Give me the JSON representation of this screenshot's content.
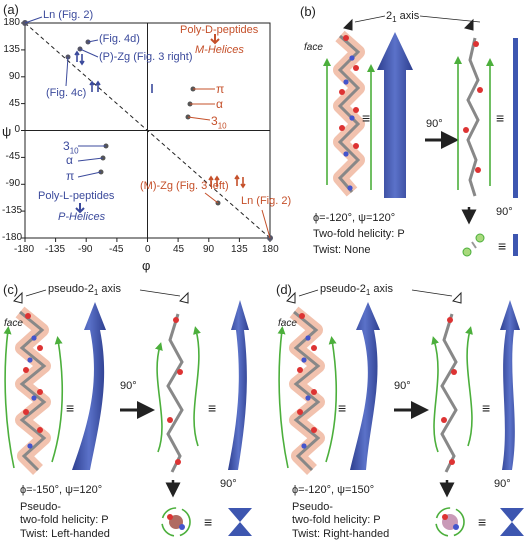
{
  "panels": {
    "a": {
      "label": "(a)",
      "x_axis_label": "φ",
      "y_axis_label": "ψ",
      "x_ticks": [
        "-180",
        "-135",
        "-90",
        "-45",
        "0",
        "45",
        "90",
        "135",
        "180"
      ],
      "y_ticks": [
        "180",
        "135",
        "90",
        "45",
        "0",
        "-45",
        "-90",
        "-135",
        "-180"
      ],
      "ann_ln_top": "Ln (Fig. 2)",
      "ann_fig4d": "(Fig. 4d)",
      "ann_pzg": "(P)-Zg (Fig. 3 right)",
      "ann_fig4c": "(Fig. 4c)",
      "ann_poly_d": "Poly-D-peptides",
      "ann_m_helices": "M-Helices",
      "ann_pi_r": "π",
      "ann_alpha_r": "α",
      "ann_310_r": "3",
      "ann_310_r_sub": "10",
      "ann_310_l": "3",
      "ann_310_l_sub": "10",
      "ann_alpha_l": "α",
      "ann_pi_l": "π",
      "ann_mzg": "(M)-Zg (Fig. 3 left)",
      "ann_poly_l": "Poly-L-peptides",
      "ann_p_helices": "P-Helices",
      "ann_ln_bottom": "Ln (Fig. 2)"
    },
    "b": {
      "label": "(b)",
      "axis_label": "2",
      "axis_sub": "1",
      "axis_suffix": " axis",
      "face": "face",
      "equiv": "≡",
      "rot1": "90°",
      "rot2": "90°",
      "angles": "ϕ=-120°, ψ=120°",
      "helicity": "Two-fold helicity: P",
      "twist": "Twist: None"
    },
    "c": {
      "label": "(c)",
      "axis_label": "pseudo-2",
      "axis_sub": "1",
      "axis_suffix": " axis",
      "face": "face",
      "equiv": "≡",
      "rot1": "90°",
      "rot2": "90°",
      "angles": "ϕ=-150°, ψ=120°",
      "helicity_1": "Pseudo-",
      "helicity_2": "two-fold helicity: P",
      "twist": "Twist: Left-handed"
    },
    "d": {
      "label": "(d)",
      "axis_label": "pseudo-2",
      "axis_sub": "1",
      "axis_suffix": " axis",
      "face": "face",
      "equiv": "≡",
      "rot1": "90°",
      "rot2": "90°",
      "angles": "ϕ=-120°, ψ=150°",
      "helicity_1": "Pseudo-",
      "helicity_2": "two-fold helicity: P",
      "twist": "Twist: Right-handed"
    }
  },
  "colors": {
    "blue": "#3b4a9c",
    "orange": "#c5502a",
    "green": "#4caf3c",
    "ribbon": "#3d56b0"
  }
}
